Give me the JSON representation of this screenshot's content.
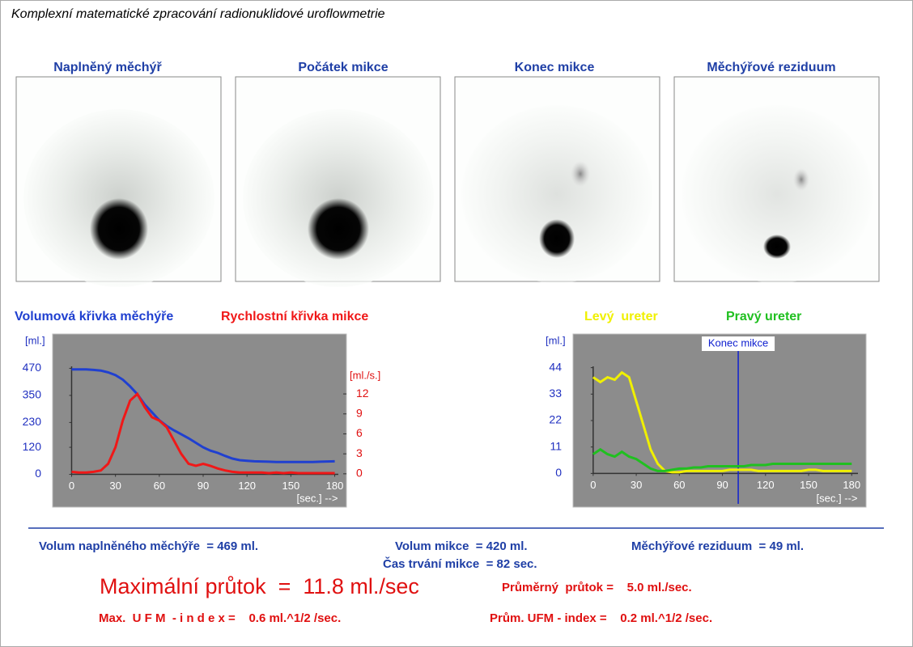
{
  "header": {
    "title": "Komplexní matematické zpracování radionuklidové uroflowmetrie"
  },
  "images": [
    {
      "label": "Naplněný měchýř"
    },
    {
      "label": "Počátek mikce"
    },
    {
      "label": "Konec mikce"
    },
    {
      "label": "Měchýřové reziduum"
    }
  ],
  "chart_data": [
    {
      "type": "line",
      "x": [
        0,
        5,
        10,
        15,
        20,
        25,
        30,
        35,
        40,
        45,
        50,
        55,
        60,
        65,
        70,
        75,
        80,
        85,
        90,
        95,
        100,
        105,
        110,
        115,
        120,
        125,
        130,
        135,
        140,
        145,
        150,
        155,
        160,
        165,
        170,
        175,
        180
      ],
      "series": [
        {
          "name": "Volumová křivka měchýře",
          "color": "#2040d0",
          "values": [
            465,
            465,
            465,
            463,
            460,
            452,
            440,
            420,
            390,
            355,
            310,
            275,
            240,
            215,
            195,
            178,
            160,
            140,
            120,
            105,
            95,
            82,
            70,
            63,
            60,
            58,
            57,
            56,
            55,
            55,
            55,
            55,
            55,
            55,
            56,
            57,
            58
          ]
        },
        {
          "name": "Rychlostní křivka mikce",
          "color": "#f01818",
          "axis": "y2",
          "values": [
            0.3,
            0.2,
            0.2,
            0.3,
            0.5,
            1.5,
            4,
            8,
            11,
            12,
            10,
            8.5,
            8,
            7,
            5,
            3,
            1.5,
            1.2,
            1.5,
            1.2,
            0.8,
            0.5,
            0.3,
            0.2,
            0.2,
            0.2,
            0.2,
            0.1,
            0.2,
            0.1,
            0.2,
            0.1,
            0.1,
            0.1,
            0.1,
            0.1,
            0.1
          ]
        }
      ],
      "xlim": [
        -13,
        188
      ],
      "xticks": [
        0,
        30,
        60,
        90,
        120,
        150,
        180
      ],
      "x_label": "[sec.] -->",
      "ylim": [
        -145,
        622
      ],
      "yticks": [
        0,
        120,
        230,
        350,
        470
      ],
      "y_label": "[ml.]",
      "ytick_color": "#2030c0",
      "y2lim": [
        -5,
        21
      ],
      "y2ticks": [
        0,
        3,
        6,
        9,
        12
      ],
      "y2_label": "[ml./s.]",
      "y2tick_color": "#e01010",
      "background": "#8c8c8c",
      "grid": false
    },
    {
      "type": "line",
      "x": [
        0,
        5,
        10,
        15,
        20,
        25,
        30,
        35,
        40,
        45,
        50,
        55,
        60,
        65,
        70,
        75,
        80,
        85,
        90,
        95,
        100,
        105,
        110,
        115,
        120,
        125,
        130,
        135,
        140,
        145,
        150,
        155,
        160,
        165,
        170,
        175,
        180
      ],
      "series": [
        {
          "name": "Levý  ureter",
          "color": "#f0f000",
          "values": [
            40,
            38,
            40,
            39,
            42,
            40,
            30,
            20,
            10,
            4,
            1,
            0.5,
            0.5,
            1,
            1,
            1,
            1,
            1,
            1,
            1.5,
            1.5,
            1.5,
            1.5,
            1,
            1,
            1,
            1,
            1,
            1,
            1,
            1.5,
            1.5,
            1,
            1,
            1,
            1,
            1
          ]
        },
        {
          "name": "Pravý ureter",
          "color": "#20c020",
          "values": [
            8,
            10,
            8,
            7,
            9,
            7,
            6,
            4,
            2,
            1,
            1,
            1.5,
            2,
            2,
            2.5,
            2.5,
            3,
            3,
            3,
            3,
            3,
            3,
            3.5,
            3.5,
            3.5,
            4,
            4,
            4,
            4,
            4,
            4,
            4,
            4,
            4,
            4,
            4,
            4
          ]
        }
      ],
      "annotations": [
        {
          "text": "Konec mikce",
          "x": 101
        }
      ],
      "xlim": [
        -14,
        190
      ],
      "xticks": [
        0,
        30,
        60,
        90,
        120,
        150,
        180
      ],
      "x_label": "[sec.] -->",
      "ylim": [
        -14,
        58
      ],
      "yticks": [
        0,
        11,
        22,
        33,
        44
      ],
      "y_label": "[ml.]",
      "ytick_color": "#2030c0",
      "background": "#8c8c8c",
      "grid": false
    }
  ],
  "results": {
    "bladder_volume": "Volum naplněného měchýře  = 469 ml.",
    "voided_volume": "Volum mikce  = 420 ml.",
    "residual": "Měchýřové reziduum  = 49 ml.",
    "duration": "Čas trvání mikce  = 82 sec.",
    "max_flow": "Maximální průtok  =  11.8 ml./sec",
    "mean_flow": "Průměrný  průtok =    5.0 ml./sec.",
    "max_ufm": "Max.  U F M  - i n d e x =    0.6 ml.^1/2 /sec.",
    "mean_ufm": "Prům. UFM - index =    0.2 ml.^1/2 /sec."
  }
}
